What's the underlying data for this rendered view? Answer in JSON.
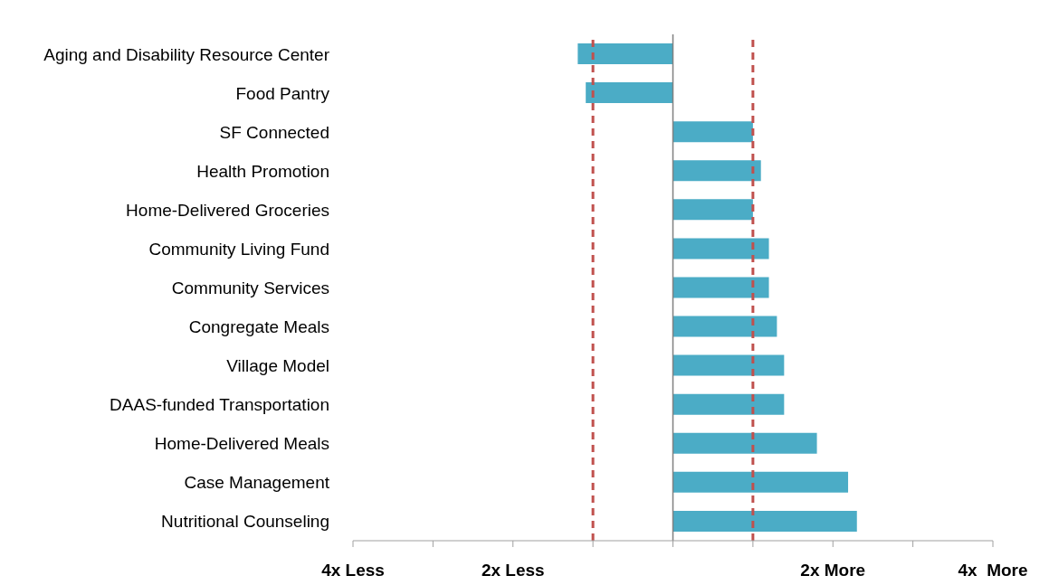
{
  "chart_data": {
    "type": "bar",
    "orientation": "horizontal",
    "categories": [
      "Aging and Disability Resource Center",
      "Food Pantry",
      "SF Connected",
      "Health Promotion",
      "Home-Delivered Groceries",
      "Community Living Fund",
      "Community Services",
      "Congregate Meals",
      "Village Model",
      "DAAS-funded Transportation",
      "Home-Delivered Meals",
      "Case Management",
      "Nutritional Counseling"
    ],
    "values": [
      -1.19,
      -1.09,
      1.0,
      1.1,
      1.0,
      1.2,
      1.2,
      1.3,
      1.39,
      1.39,
      1.8,
      2.19,
      2.3
    ],
    "color": "#4bacc6",
    "xlim": [
      -4,
      4
    ],
    "xticks": [
      {
        "value": -4,
        "label": "4x Less"
      },
      {
        "value": -3,
        "label": null
      },
      {
        "value": -2,
        "label": "2x Less"
      },
      {
        "value": -1,
        "label": null
      },
      {
        "value": 0,
        "label": null
      },
      {
        "value": 1,
        "label": null
      },
      {
        "value": 2,
        "label": "2x More"
      },
      {
        "value": 3,
        "label": null
      },
      {
        "value": 4,
        "label": "4x  More"
      }
    ],
    "ref_lines": [
      {
        "axis": "x",
        "value": 0,
        "color": "#808080",
        "line_style": "solid"
      },
      {
        "axis": "x",
        "value": -1,
        "color": "#c0504d",
        "line_style": "dashed"
      },
      {
        "axis": "x",
        "value": 1,
        "color": "#c0504d",
        "line_style": "dashed"
      }
    ],
    "grid": false,
    "legend": false
  }
}
